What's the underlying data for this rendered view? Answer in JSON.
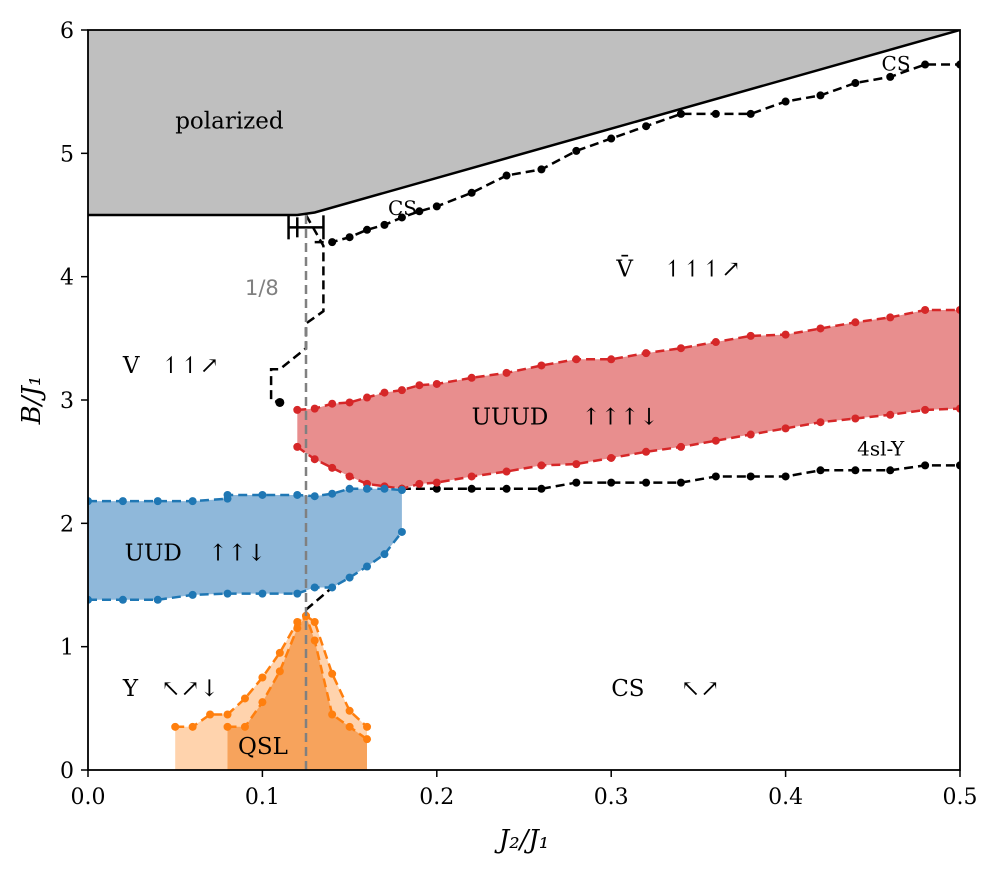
{
  "chart_data": {
    "type": "line",
    "title": "",
    "xlabel": "J₂/J₁",
    "ylabel": "B/J₁",
    "xlim": [
      0.0,
      0.5
    ],
    "ylim": [
      0,
      6
    ],
    "xticks": [
      "0.0",
      "0.1",
      "0.2",
      "0.3",
      "0.4",
      "0.5"
    ],
    "yticks": [
      "0",
      "1",
      "2",
      "3",
      "4",
      "5",
      "6"
    ],
    "colors": {
      "polarized": "#bfbfbf",
      "uuud_fill": "#e88e8e",
      "uuud_line": "#d62728",
      "uud_fill": "#8fb8da",
      "uud_line": "#1f77b4",
      "qsl_line": "#ff7f0e",
      "qsl_light": "#ffd3ad",
      "qsl_dark": "#f7a35c",
      "guide": "#808080"
    },
    "regions": {
      "polarized_boundary": [
        [
          0.0,
          4.5
        ],
        [
          0.12,
          4.5
        ],
        [
          0.13,
          4.52
        ],
        [
          0.5,
          6.0
        ]
      ],
      "uuud_upper": [
        [
          0.12,
          2.92
        ],
        [
          0.13,
          2.93
        ],
        [
          0.14,
          2.97
        ],
        [
          0.15,
          2.98
        ],
        [
          0.16,
          3.02
        ],
        [
          0.17,
          3.06
        ],
        [
          0.18,
          3.08
        ],
        [
          0.19,
          3.12
        ],
        [
          0.2,
          3.13
        ],
        [
          0.22,
          3.18
        ],
        [
          0.24,
          3.22
        ],
        [
          0.26,
          3.28
        ],
        [
          0.28,
          3.33
        ],
        [
          0.3,
          3.33
        ],
        [
          0.32,
          3.38
        ],
        [
          0.34,
          3.42
        ],
        [
          0.36,
          3.47
        ],
        [
          0.38,
          3.52
        ],
        [
          0.4,
          3.53
        ],
        [
          0.42,
          3.58
        ],
        [
          0.44,
          3.63
        ],
        [
          0.46,
          3.67
        ],
        [
          0.48,
          3.73
        ],
        [
          0.5,
          3.73
        ]
      ],
      "uuud_lower": [
        [
          0.12,
          2.62
        ],
        [
          0.13,
          2.52
        ],
        [
          0.14,
          2.45
        ],
        [
          0.15,
          2.38
        ],
        [
          0.16,
          2.32
        ],
        [
          0.17,
          2.3
        ],
        [
          0.18,
          2.28
        ],
        [
          0.19,
          2.32
        ],
        [
          0.2,
          2.33
        ],
        [
          0.22,
          2.38
        ],
        [
          0.24,
          2.42
        ],
        [
          0.26,
          2.47
        ],
        [
          0.28,
          2.48
        ],
        [
          0.3,
          2.53
        ],
        [
          0.32,
          2.58
        ],
        [
          0.34,
          2.62
        ],
        [
          0.36,
          2.67
        ],
        [
          0.38,
          2.72
        ],
        [
          0.4,
          2.77
        ],
        [
          0.42,
          2.82
        ],
        [
          0.44,
          2.85
        ],
        [
          0.46,
          2.88
        ],
        [
          0.48,
          2.92
        ],
        [
          0.5,
          2.93
        ]
      ],
      "uud_upper": [
        [
          0.0,
          2.18
        ],
        [
          0.02,
          2.18
        ],
        [
          0.04,
          2.18
        ],
        [
          0.06,
          2.18
        ],
        [
          0.08,
          2.2
        ],
        [
          0.08,
          2.23
        ],
        [
          0.1,
          2.23
        ],
        [
          0.12,
          2.23
        ],
        [
          0.13,
          2.22
        ],
        [
          0.14,
          2.24
        ],
        [
          0.15,
          2.28
        ],
        [
          0.16,
          2.28
        ],
        [
          0.17,
          2.28
        ],
        [
          0.18,
          2.27
        ]
      ],
      "uud_lower": [
        [
          0.0,
          1.38
        ],
        [
          0.02,
          1.38
        ],
        [
          0.04,
          1.38
        ],
        [
          0.06,
          1.42
        ],
        [
          0.08,
          1.43
        ],
        [
          0.1,
          1.43
        ],
        [
          0.12,
          1.43
        ],
        [
          0.13,
          1.48
        ],
        [
          0.14,
          1.48
        ],
        [
          0.15,
          1.56
        ],
        [
          0.16,
          1.65
        ],
        [
          0.17,
          1.75
        ],
        [
          0.18,
          1.93
        ]
      ],
      "qsl_outer": [
        [
          0.05,
          0.35
        ],
        [
          0.06,
          0.35
        ],
        [
          0.07,
          0.45
        ],
        [
          0.08,
          0.45
        ],
        [
          0.09,
          0.58
        ],
        [
          0.1,
          0.75
        ],
        [
          0.11,
          0.95
        ],
        [
          0.12,
          1.2
        ],
        [
          0.125,
          1.25
        ],
        [
          0.13,
          1.2
        ],
        [
          0.14,
          0.78
        ],
        [
          0.15,
          0.48
        ],
        [
          0.16,
          0.35
        ]
      ],
      "qsl_inner": [
        [
          0.08,
          0.35
        ],
        [
          0.09,
          0.35
        ],
        [
          0.1,
          0.55
        ],
        [
          0.11,
          0.8
        ],
        [
          0.12,
          1.15
        ],
        [
          0.125,
          1.25
        ],
        [
          0.13,
          1.05
        ],
        [
          0.14,
          0.45
        ],
        [
          0.15,
          0.35
        ],
        [
          0.16,
          0.25
        ]
      ],
      "cs_upper": [
        [
          0.125,
          4.5
        ],
        [
          0.135,
          4.25
        ],
        [
          0.135,
          3.72
        ],
        [
          0.125,
          3.62
        ],
        [
          0.125,
          3.42
        ],
        [
          0.11,
          3.25
        ],
        [
          0.105,
          3.25
        ],
        [
          0.105,
          3.0
        ],
        [
          0.11,
          2.98
        ]
      ],
      "cs_high_dots": [
        [
          0.14,
          4.28
        ],
        [
          0.15,
          4.32
        ],
        [
          0.16,
          4.38
        ],
        [
          0.17,
          4.42
        ],
        [
          0.18,
          4.48
        ],
        [
          0.19,
          4.53
        ],
        [
          0.2,
          4.57
        ],
        [
          0.22,
          4.68
        ],
        [
          0.24,
          4.82
        ],
        [
          0.26,
          4.87
        ],
        [
          0.28,
          5.02
        ],
        [
          0.3,
          5.12
        ],
        [
          0.32,
          5.22
        ],
        [
          0.34,
          5.32
        ],
        [
          0.36,
          5.32
        ],
        [
          0.38,
          5.32
        ],
        [
          0.4,
          5.42
        ],
        [
          0.42,
          5.47
        ],
        [
          0.44,
          5.57
        ],
        [
          0.46,
          5.62
        ],
        [
          0.48,
          5.72
        ],
        [
          0.5,
          5.72
        ]
      ],
      "cs_low_dots": [
        [
          0.18,
          2.28
        ],
        [
          0.2,
          2.28
        ],
        [
          0.22,
          2.28
        ],
        [
          0.24,
          2.28
        ],
        [
          0.26,
          2.28
        ],
        [
          0.28,
          2.33
        ],
        [
          0.3,
          2.33
        ],
        [
          0.32,
          2.33
        ],
        [
          0.34,
          2.33
        ],
        [
          0.36,
          2.38
        ],
        [
          0.38,
          2.38
        ],
        [
          0.4,
          2.38
        ],
        [
          0.42,
          2.43
        ],
        [
          0.44,
          2.43
        ],
        [
          0.46,
          2.43
        ],
        [
          0.48,
          2.47
        ],
        [
          0.5,
          2.47
        ]
      ],
      "guide_x": 0.125
    },
    "annotations": {
      "polarized": "polarized",
      "cs_top": "CS",
      "cs_mid": "CS",
      "vbar": "V̄",
      "vbar_arrows": "↿↿↿↗",
      "v": "V",
      "v_arrows": "↿↿↗",
      "one_eighth": "1/8",
      "uuud": "UUUD",
      "uuud_arrows": "↑↑↑↓",
      "sl4y": "4sl-Y",
      "uud": "UUD",
      "uud_arrows": "↑↑↓",
      "y": "Y",
      "y_arrows": "↖↗↓",
      "cs_low": "CS",
      "cs_low_arrows": "↖↗",
      "qsl": "QSL"
    }
  }
}
